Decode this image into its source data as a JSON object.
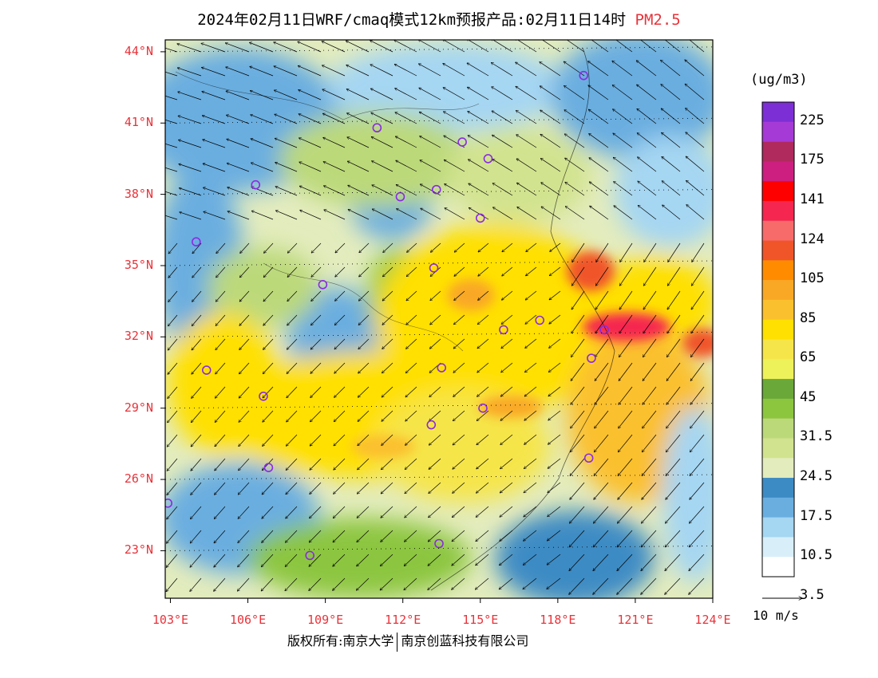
{
  "title": {
    "main": "2024年02月11日WRF/cmaq模式12km预报产品:02月11日14时",
    "pollutant": "PM2.5"
  },
  "map": {
    "lat_labels": [
      "44°N",
      "41°N",
      "38°N",
      "35°N",
      "32°N",
      "29°N",
      "26°N",
      "23°N"
    ],
    "lon_labels": [
      "103°E",
      "106°E",
      "109°E",
      "112°E",
      "115°E",
      "118°E",
      "121°E",
      "124°E"
    ],
    "lat_range": [
      21,
      44.5
    ],
    "lon_range": [
      102.8,
      124
    ]
  },
  "legend": {
    "unit": "(ug/m3)",
    "labels": [
      "225",
      "175",
      "141",
      "124",
      "105",
      "85",
      "65",
      "45",
      "31.5",
      "24.5",
      "17.5",
      "10.5",
      "3.5"
    ],
    "colors": [
      "#7d2fd6",
      "#a63ad6",
      "#b02a5e",
      "#cc1f7f",
      "#ff0000",
      "#f5264f",
      "#f76b6b",
      "#f0552a",
      "#ff8c00",
      "#f9a825",
      "#fbc02d",
      "#ffe000",
      "#f6e54a",
      "#eef25a",
      "#6aa83a",
      "#8cc63f",
      "#bcd97a",
      "#d2e38f",
      "#e3ecbd",
      "#3d8bc4",
      "#6aaee0",
      "#a5d6f2",
      "#d8effa",
      "#ffffff"
    ]
  },
  "wind": {
    "reference_label": "10 m/s"
  },
  "footer": {
    "copyright": "版权所有:南京大学",
    "company": "南京创蓝科技有限公司"
  },
  "stations": [
    {
      "lon": 119.0,
      "lat": 43.0
    },
    {
      "lon": 111.0,
      "lat": 40.8
    },
    {
      "lon": 114.3,
      "lat": 40.2
    },
    {
      "lon": 115.3,
      "lat": 39.5
    },
    {
      "lon": 106.3,
      "lat": 38.4
    },
    {
      "lon": 111.9,
      "lat": 37.9
    },
    {
      "lon": 113.3,
      "lat": 38.2
    },
    {
      "lon": 115.0,
      "lat": 37.0
    },
    {
      "lon": 104.0,
      "lat": 36.0
    },
    {
      "lon": 113.2,
      "lat": 34.9
    },
    {
      "lon": 108.9,
      "lat": 34.2
    },
    {
      "lon": 117.3,
      "lat": 32.7
    },
    {
      "lon": 115.9,
      "lat": 32.3
    },
    {
      "lon": 119.8,
      "lat": 32.3
    },
    {
      "lon": 119.3,
      "lat": 31.1
    },
    {
      "lon": 104.4,
      "lat": 30.6
    },
    {
      "lon": 113.5,
      "lat": 30.7
    },
    {
      "lon": 106.6,
      "lat": 29.5
    },
    {
      "lon": 115.1,
      "lat": 29.0
    },
    {
      "lon": 113.1,
      "lat": 28.3
    },
    {
      "lon": 106.8,
      "lat": 26.5
    },
    {
      "lon": 119.2,
      "lat": 26.9
    },
    {
      "lon": 102.9,
      "lat": 25.0
    },
    {
      "lon": 108.4,
      "lat": 22.8
    },
    {
      "lon": 113.4,
      "lat": 23.3
    }
  ]
}
